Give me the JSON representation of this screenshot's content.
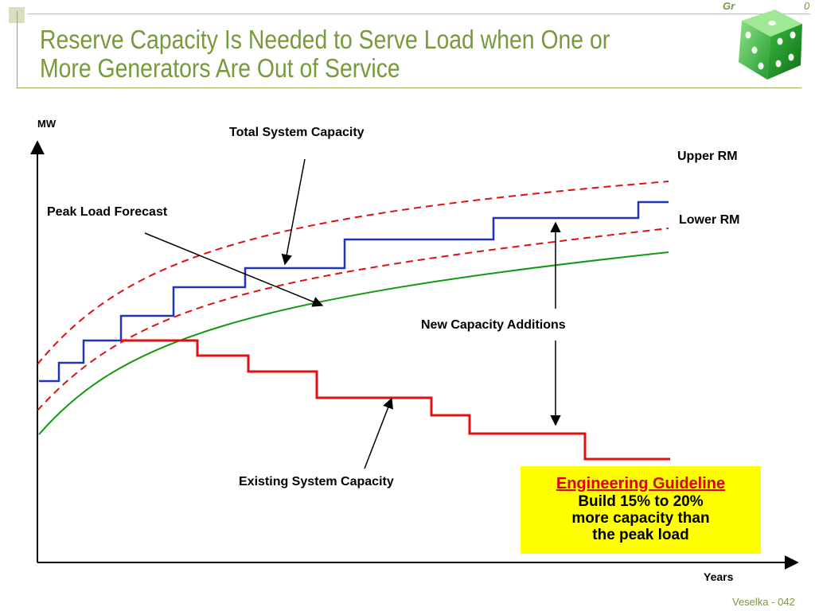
{
  "slide": {
    "title_line1": "Reserve Capacity Is Needed to Serve Load when One or",
    "title_line2": "More Generators Are Out of Service",
    "brand_text": "Gr",
    "brand_number": "0",
    "footer": "Veselka  - 042"
  },
  "diagram": {
    "y_axis_label": "MW",
    "x_axis_label": "Years",
    "labels": {
      "total_system_capacity": "Total System Capacity",
      "upper_rm": "Upper RM",
      "lower_rm": "Lower RM",
      "peak_load_forecast": "Peak Load Forecast",
      "new_capacity_additions": "New Capacity Additions",
      "existing_system_capacity": "Existing System Capacity"
    },
    "colors": {
      "total_capacity": "#2233bb",
      "existing_capacity": "#e01010",
      "peak_load": "#119911",
      "reserve_margin": "#e01010"
    }
  },
  "guideline": {
    "title": "Engineering Guideline",
    "body": "Build 15% to 20%\nmore capacity than\nthe peak load"
  }
}
